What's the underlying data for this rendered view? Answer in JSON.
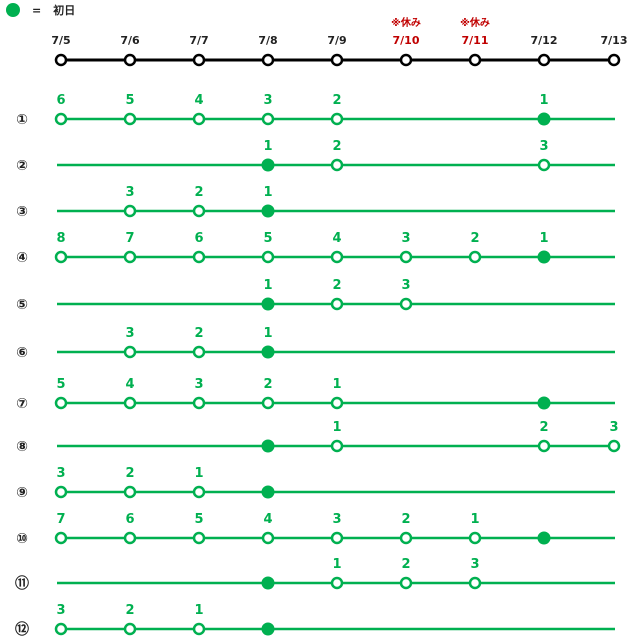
{
  "legend": {
    "symbol": "=",
    "label": "初日",
    "color": "#00b050"
  },
  "colors": {
    "green": "#00b050",
    "black": "#000000",
    "holiday": "#c00000"
  },
  "dates": [
    "7/5",
    "7/6",
    "7/7",
    "7/8",
    "7/9",
    "7/10",
    "7/11",
    "7/12",
    "7/13"
  ],
  "holidays": [
    {
      "date": "7/10",
      "note": "※休み"
    },
    {
      "date": "7/11",
      "note": "※休み"
    }
  ],
  "rows": [
    {
      "label": "①",
      "first_day": "7/12",
      "points": [
        {
          "date": "7/5",
          "count": "6"
        },
        {
          "date": "7/6",
          "count": "5"
        },
        {
          "date": "7/7",
          "count": "4"
        },
        {
          "date": "7/8",
          "count": "3"
        },
        {
          "date": "7/9",
          "count": "2"
        },
        {
          "date": "7/12",
          "count": "1"
        }
      ]
    },
    {
      "label": "②",
      "first_day": "7/8",
      "points": [
        {
          "date": "7/8",
          "count": "1"
        },
        {
          "date": "7/9",
          "count": "2"
        },
        {
          "date": "7/12",
          "count": "3"
        }
      ]
    },
    {
      "label": "③",
      "first_day": "7/8",
      "points": [
        {
          "date": "7/6",
          "count": "3"
        },
        {
          "date": "7/7",
          "count": "2"
        },
        {
          "date": "7/8",
          "count": "1"
        }
      ]
    },
    {
      "label": "④",
      "first_day": "7/12",
      "points": [
        {
          "date": "7/5",
          "count": "8"
        },
        {
          "date": "7/6",
          "count": "7"
        },
        {
          "date": "7/7",
          "count": "6"
        },
        {
          "date": "7/8",
          "count": "5"
        },
        {
          "date": "7/9",
          "count": "4"
        },
        {
          "date": "7/10",
          "count": "3"
        },
        {
          "date": "7/11",
          "count": "2"
        },
        {
          "date": "7/12",
          "count": "1"
        }
      ]
    },
    {
      "label": "⑤",
      "first_day": "7/8",
      "points": [
        {
          "date": "7/8",
          "count": "1"
        },
        {
          "date": "7/9",
          "count": "2"
        },
        {
          "date": "7/10",
          "count": "3"
        }
      ]
    },
    {
      "label": "⑥",
      "first_day": "7/8",
      "points": [
        {
          "date": "7/6",
          "count": "3"
        },
        {
          "date": "7/7",
          "count": "2"
        },
        {
          "date": "7/8",
          "count": "1"
        }
      ]
    },
    {
      "label": "⑦",
      "first_day": "7/12",
      "points": [
        {
          "date": "7/5",
          "count": "5"
        },
        {
          "date": "7/6",
          "count": "4"
        },
        {
          "date": "7/7",
          "count": "3"
        },
        {
          "date": "7/8",
          "count": "2"
        },
        {
          "date": "7/9",
          "count": "1"
        },
        {
          "date": "7/12",
          "count": ""
        }
      ]
    },
    {
      "label": "⑧",
      "first_day": "7/8",
      "points": [
        {
          "date": "7/8",
          "count": ""
        },
        {
          "date": "7/9",
          "count": "1"
        },
        {
          "date": "7/12",
          "count": "2"
        },
        {
          "date": "7/13",
          "count": "3"
        }
      ]
    },
    {
      "label": "⑨",
      "first_day": "7/8",
      "points": [
        {
          "date": "7/5",
          "count": "3"
        },
        {
          "date": "7/6",
          "count": "2"
        },
        {
          "date": "7/7",
          "count": "1"
        },
        {
          "date": "7/8",
          "count": ""
        }
      ]
    },
    {
      "label": "⑩",
      "first_day": "7/12",
      "points": [
        {
          "date": "7/5",
          "count": "7"
        },
        {
          "date": "7/6",
          "count": "6"
        },
        {
          "date": "7/7",
          "count": "5"
        },
        {
          "date": "7/8",
          "count": "4"
        },
        {
          "date": "7/9",
          "count": "3"
        },
        {
          "date": "7/10",
          "count": "2"
        },
        {
          "date": "7/11",
          "count": "1"
        },
        {
          "date": "7/12",
          "count": ""
        }
      ]
    },
    {
      "label": "⑪",
      "first_day": "7/8",
      "points": [
        {
          "date": "7/8",
          "count": ""
        },
        {
          "date": "7/9",
          "count": "1"
        },
        {
          "date": "7/10",
          "count": "2"
        },
        {
          "date": "7/11",
          "count": "3"
        }
      ]
    },
    {
      "label": "⑫",
      "first_day": "7/8",
      "points": [
        {
          "date": "7/5",
          "count": "3"
        },
        {
          "date": "7/6",
          "count": "2"
        },
        {
          "date": "7/7",
          "count": "1"
        },
        {
          "date": "7/8",
          "count": ""
        }
      ]
    }
  ]
}
